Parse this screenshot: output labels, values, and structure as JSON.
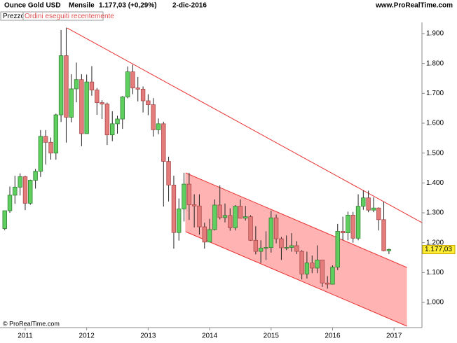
{
  "chart_data": {
    "type": "candlestick",
    "symbol": "Ounce Gold USD",
    "period": "Mensile",
    "last": "1.177,03 (+0,29%)",
    "date": "2-dic-2016",
    "site": "www.ProRealTime.com",
    "legend": [
      "Prezzo",
      "Ordini eseguiti recentemente"
    ],
    "footer": "© ProRealTime.com",
    "price_tag": {
      "value": 1177.03,
      "label": "1.177,03"
    },
    "up_color": "#5fd05f",
    "down_color": "#e47c7c",
    "x": [
      2010.667,
      2010.75,
      2010.833,
      2010.917,
      2011.0,
      2011.083,
      2011.167,
      2011.25,
      2011.333,
      2011.417,
      2011.5,
      2011.583,
      2011.667,
      2011.75,
      2011.833,
      2011.917,
      2012.0,
      2012.083,
      2012.167,
      2012.25,
      2012.333,
      2012.417,
      2012.5,
      2012.583,
      2012.667,
      2012.75,
      2012.833,
      2012.917,
      2013.0,
      2013.083,
      2013.167,
      2013.25,
      2013.333,
      2013.417,
      2013.5,
      2013.583,
      2013.667,
      2013.75,
      2013.833,
      2013.917,
      2014.0,
      2014.083,
      2014.167,
      2014.25,
      2014.333,
      2014.417,
      2014.5,
      2014.583,
      2014.667,
      2014.75,
      2014.833,
      2014.917,
      2015.0,
      2015.083,
      2015.167,
      2015.25,
      2015.333,
      2015.417,
      2015.5,
      2015.583,
      2015.667,
      2015.75,
      2015.833,
      2015.917,
      2016.0,
      2016.083,
      2016.167,
      2016.25,
      2016.333,
      2016.417,
      2016.5,
      2016.583,
      2016.667,
      2016.75,
      2016.833,
      2016.917
    ],
    "open": [
      1247,
      1307,
      1359,
      1386,
      1421,
      1332,
      1409,
      1439,
      1556,
      1536,
      1500,
      1628,
      1826,
      1620,
      1715,
      1746,
      1565,
      1738,
      1711,
      1669,
      1664,
      1561,
      1598,
      1614,
      1688,
      1772,
      1718,
      1714,
      1675,
      1662,
      1578,
      1598,
      1472,
      1393,
      1234,
      1313,
      1396,
      1327,
      1323,
      1253,
      1202,
      1244,
      1326,
      1284,
      1291,
      1250,
      1322,
      1282,
      1287,
      1208,
      1171,
      1182,
      1184,
      1283,
      1213,
      1183,
      1184,
      1190,
      1171,
      1095,
      1132,
      1115,
      1142,
      1065,
      1061,
      1118,
      1238,
      1233,
      1292,
      1215,
      1322,
      1350,
      1309,
      1316,
      1277,
      1173
    ],
    "high": [
      1307,
      1388,
      1424,
      1432,
      1424,
      1411,
      1447,
      1577,
      1577,
      1552,
      1632,
      1912,
      1920,
      1764,
      1803,
      1764,
      1763,
      1791,
      1718,
      1677,
      1669,
      1640,
      1625,
      1691,
      1790,
      1796,
      1755,
      1723,
      1697,
      1684,
      1616,
      1605,
      1488,
      1424,
      1348,
      1434,
      1434,
      1362,
      1362,
      1267,
      1280,
      1345,
      1392,
      1331,
      1315,
      1326,
      1345,
      1323,
      1292,
      1255,
      1208,
      1238,
      1307,
      1294,
      1219,
      1224,
      1232,
      1205,
      1175,
      1170,
      1157,
      1191,
      1142,
      1088,
      1124,
      1263,
      1287,
      1304,
      1303,
      1362,
      1375,
      1374,
      1352,
      1318,
      1337,
      1180
    ],
    "low": [
      1242,
      1300,
      1330,
      1358,
      1309,
      1327,
      1381,
      1420,
      1462,
      1478,
      1478,
      1604,
      1535,
      1603,
      1670,
      1523,
      1565,
      1692,
      1628,
      1614,
      1527,
      1540,
      1565,
      1581,
      1683,
      1697,
      1673,
      1636,
      1627,
      1555,
      1563,
      1321,
      1338,
      1180,
      1207,
      1271,
      1276,
      1251,
      1227,
      1180,
      1202,
      1241,
      1278,
      1268,
      1240,
      1241,
      1281,
      1274,
      1206,
      1161,
      1132,
      1142,
      1167,
      1198,
      1142,
      1175,
      1170,
      1162,
      1077,
      1080,
      1098,
      1098,
      1052,
      1046,
      1060,
      1108,
      1208,
      1208,
      1200,
      1208,
      1310,
      1302,
      1302,
      1241,
      1171,
      1162
    ],
    "close": [
      1307,
      1359,
      1386,
      1421,
      1332,
      1409,
      1439,
      1556,
      1536,
      1500,
      1628,
      1826,
      1620,
      1715,
      1746,
      1565,
      1738,
      1711,
      1669,
      1664,
      1561,
      1598,
      1614,
      1688,
      1772,
      1718,
      1714,
      1675,
      1662,
      1578,
      1598,
      1472,
      1393,
      1234,
      1313,
      1396,
      1327,
      1323,
      1253,
      1202,
      1244,
      1326,
      1284,
      1291,
      1250,
      1322,
      1282,
      1287,
      1208,
      1171,
      1182,
      1184,
      1283,
      1213,
      1183,
      1184,
      1190,
      1171,
      1095,
      1132,
      1115,
      1142,
      1065,
      1061,
      1118,
      1238,
      1233,
      1292,
      1215,
      1322,
      1350,
      1309,
      1316,
      1277,
      1173,
      1177.03
    ],
    "xlim": [
      2010.59,
      2017.454
    ],
    "xticks": [
      2011,
      2012,
      2013,
      2014,
      2015,
      2016,
      2017
    ],
    "ylim": [
      915.7,
      1937.5
    ],
    "yticks": [
      {
        "value": 1000,
        "label": "1.000"
      },
      {
        "value": 1100,
        "label": "1.100"
      },
      {
        "value": 1200,
        "label": "1.200"
      },
      {
        "value": 1300,
        "label": "1.300"
      },
      {
        "value": 1400,
        "label": "1.400"
      },
      {
        "value": 1500,
        "label": "1.500"
      },
      {
        "value": 1600,
        "label": "1.600"
      },
      {
        "value": 1700,
        "label": "1.700"
      },
      {
        "value": 1800,
        "label": "1.800"
      },
      {
        "value": 1900,
        "label": "1.900"
      }
    ],
    "trendline": {
      "color": "#e83030",
      "x": [
        2011.684,
        2017.454
      ],
      "y": [
        1918.7,
        1267
      ]
    },
    "channel": {
      "color": "#e83030",
      "fill": "#ffb3b3",
      "x": [
        2013.61,
        2017.21
      ],
      "upper": [
        1433.6,
        1117
      ],
      "lower": [
        1236.8,
        920.4
      ]
    }
  }
}
